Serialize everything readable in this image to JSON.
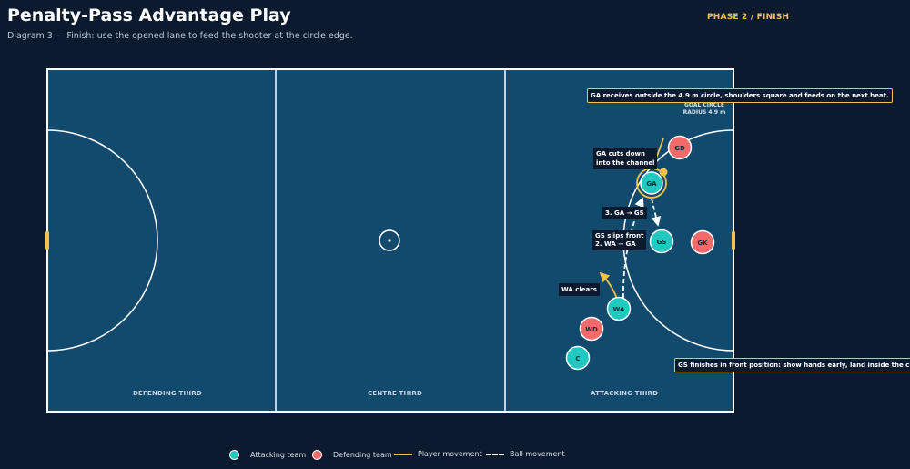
{
  "header": {
    "title": "Penalty-Pass Advantage Play",
    "subtitle": "Diagram 3 — Finish: use the opened lane to feed the shooter at the circle edge.",
    "phase": "PHASE 2 / FINISH"
  },
  "court": {
    "thirds": [
      "DEFENDING THIRD",
      "CENTRE THIRD",
      "ATTACKING THIRD"
    ],
    "goal_circle_label": [
      "GOAL CIRCLE",
      "RADIUS 4.9 m"
    ]
  },
  "players": {
    "attacking": [
      "GA",
      "GS",
      "WA",
      "C"
    ],
    "defending": [
      "GD",
      "GK",
      "WD"
    ]
  },
  "callouts": {
    "ga_receives": "GA receives outside the 4.9 m circle, shoulders square and feeds on the next beat.",
    "ga_cuts": [
      "GA cuts down",
      "into the channel"
    ],
    "pass_3": "3. GA → GS",
    "gs_slips": "GS slips front",
    "pass_2": "2. WA → GA",
    "wa_clears": "WA clears",
    "gs_finishes": "GS finishes in front position: show hands early, land inside the circle, shoot."
  },
  "legend": {
    "attacking": "Attacking team",
    "defending": "Defending team",
    "player_movement": "Player movement",
    "ball_movement": "Ball movement"
  },
  "colors": {
    "background": "#0b1a2e",
    "court": "#124a6e",
    "attacking": "#20c8c0",
    "defending": "#f46a6a",
    "movement": "#f2c24b",
    "lines": "#ffffff"
  }
}
